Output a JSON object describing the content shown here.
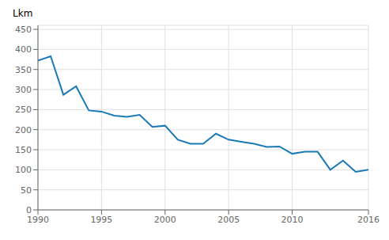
{
  "chart_data": {
    "type": "line",
    "ylabel": "Lkm",
    "x": [
      1990,
      1991,
      1992,
      1993,
      1994,
      1995,
      1996,
      1997,
      1998,
      1999,
      2000,
      2001,
      2002,
      2003,
      2004,
      2005,
      2006,
      2007,
      2008,
      2009,
      2010,
      2011,
      2012,
      2013,
      2014,
      2015,
      2016
    ],
    "values": [
      372,
      383,
      287,
      308,
      248,
      245,
      235,
      232,
      237,
      207,
      210,
      175,
      165,
      165,
      190,
      175,
      170,
      165,
      157,
      158,
      140,
      145,
      145,
      100,
      123,
      95,
      100
    ],
    "color": "#1a7ab5",
    "xlim": [
      1990,
      2016
    ],
    "ylim": [
      0,
      460
    ],
    "xticks": [
      1990,
      1995,
      2000,
      2005,
      2010,
      2016
    ],
    "yticks": [
      0,
      50,
      100,
      150,
      200,
      250,
      300,
      350,
      400,
      450
    ],
    "grid": true
  }
}
